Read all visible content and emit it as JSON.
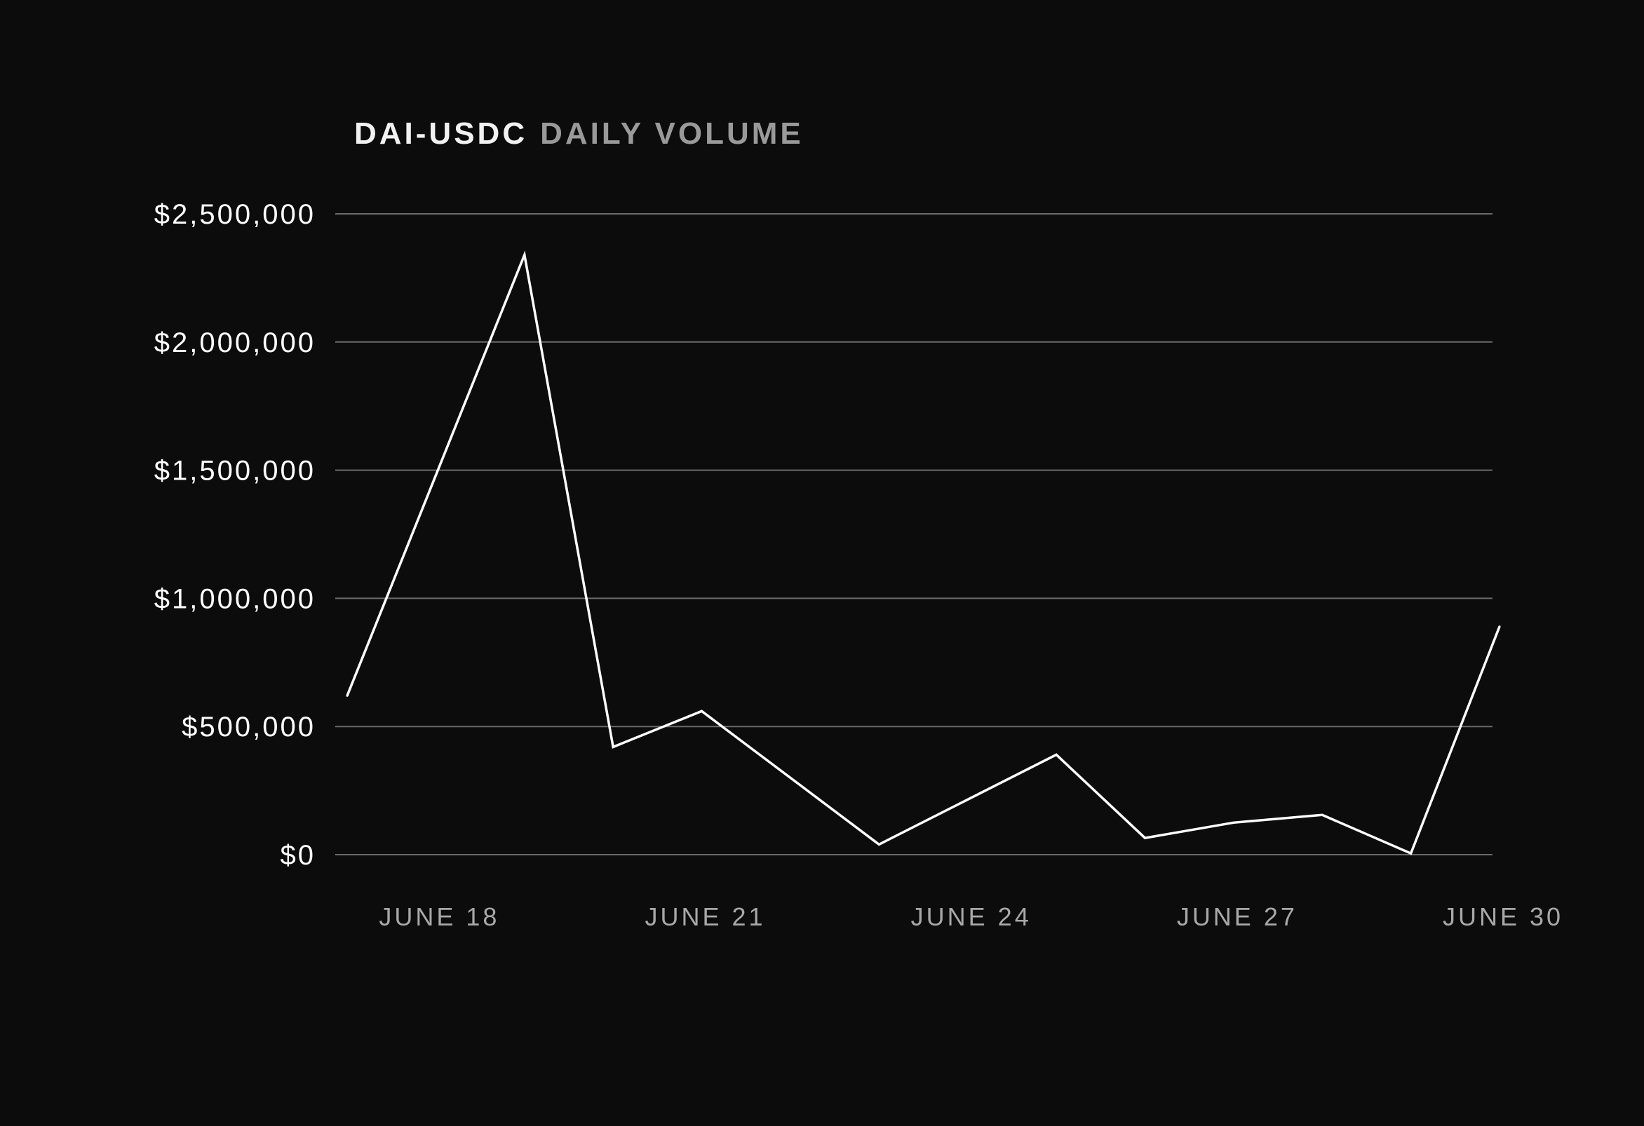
{
  "chart_data": {
    "type": "line",
    "title": {
      "primary": "DAI-USDC",
      "secondary": "DAILY VOLUME"
    },
    "colors": {
      "background": "#0c0c0c",
      "title_primary": "#f2f2f2",
      "title_secondary": "#9a9a9a",
      "line": "#ffffff",
      "grid": "#6a6a6a",
      "y_tick_text": "#ffffff",
      "x_tick_text": "#a8a8a8"
    },
    "xlabel": "",
    "ylabel": "",
    "x": [
      "2020-06-17",
      "2020-06-19",
      "2020-06-20",
      "2020-06-21",
      "2020-06-23",
      "2020-06-25",
      "2020-06-26",
      "2020-06-27",
      "2020-06-28",
      "2020-06-29",
      "2020-06-30"
    ],
    "x_ticks": [
      {
        "date": "2020-06-18",
        "label": "JUNE 18"
      },
      {
        "date": "2020-06-21",
        "label": "JUNE 21"
      },
      {
        "date": "2020-06-24",
        "label": "JUNE 24"
      },
      {
        "date": "2020-06-27",
        "label": "JUNE 27"
      },
      {
        "date": "2020-06-30",
        "label": "JUNE 30"
      }
    ],
    "x_range": [
      "2020-06-17",
      "2020-06-30"
    ],
    "series": [
      {
        "values": [
          620000,
          2340000,
          420000,
          560000,
          40000,
          390000,
          65000,
          125000,
          155000,
          5000,
          890000
        ]
      }
    ],
    "y_ticks": [
      {
        "value": 0,
        "label": "$0"
      },
      {
        "value": 500000,
        "label": "$500,000"
      },
      {
        "value": 1000000,
        "label": "$1,000,000"
      },
      {
        "value": 1500000,
        "label": "$1,500,000"
      },
      {
        "value": 2000000,
        "label": "$2,000,000"
      },
      {
        "value": 2500000,
        "label": "$2,500,000"
      }
    ],
    "ylim": [
      0,
      2500000
    ],
    "grid": true
  }
}
